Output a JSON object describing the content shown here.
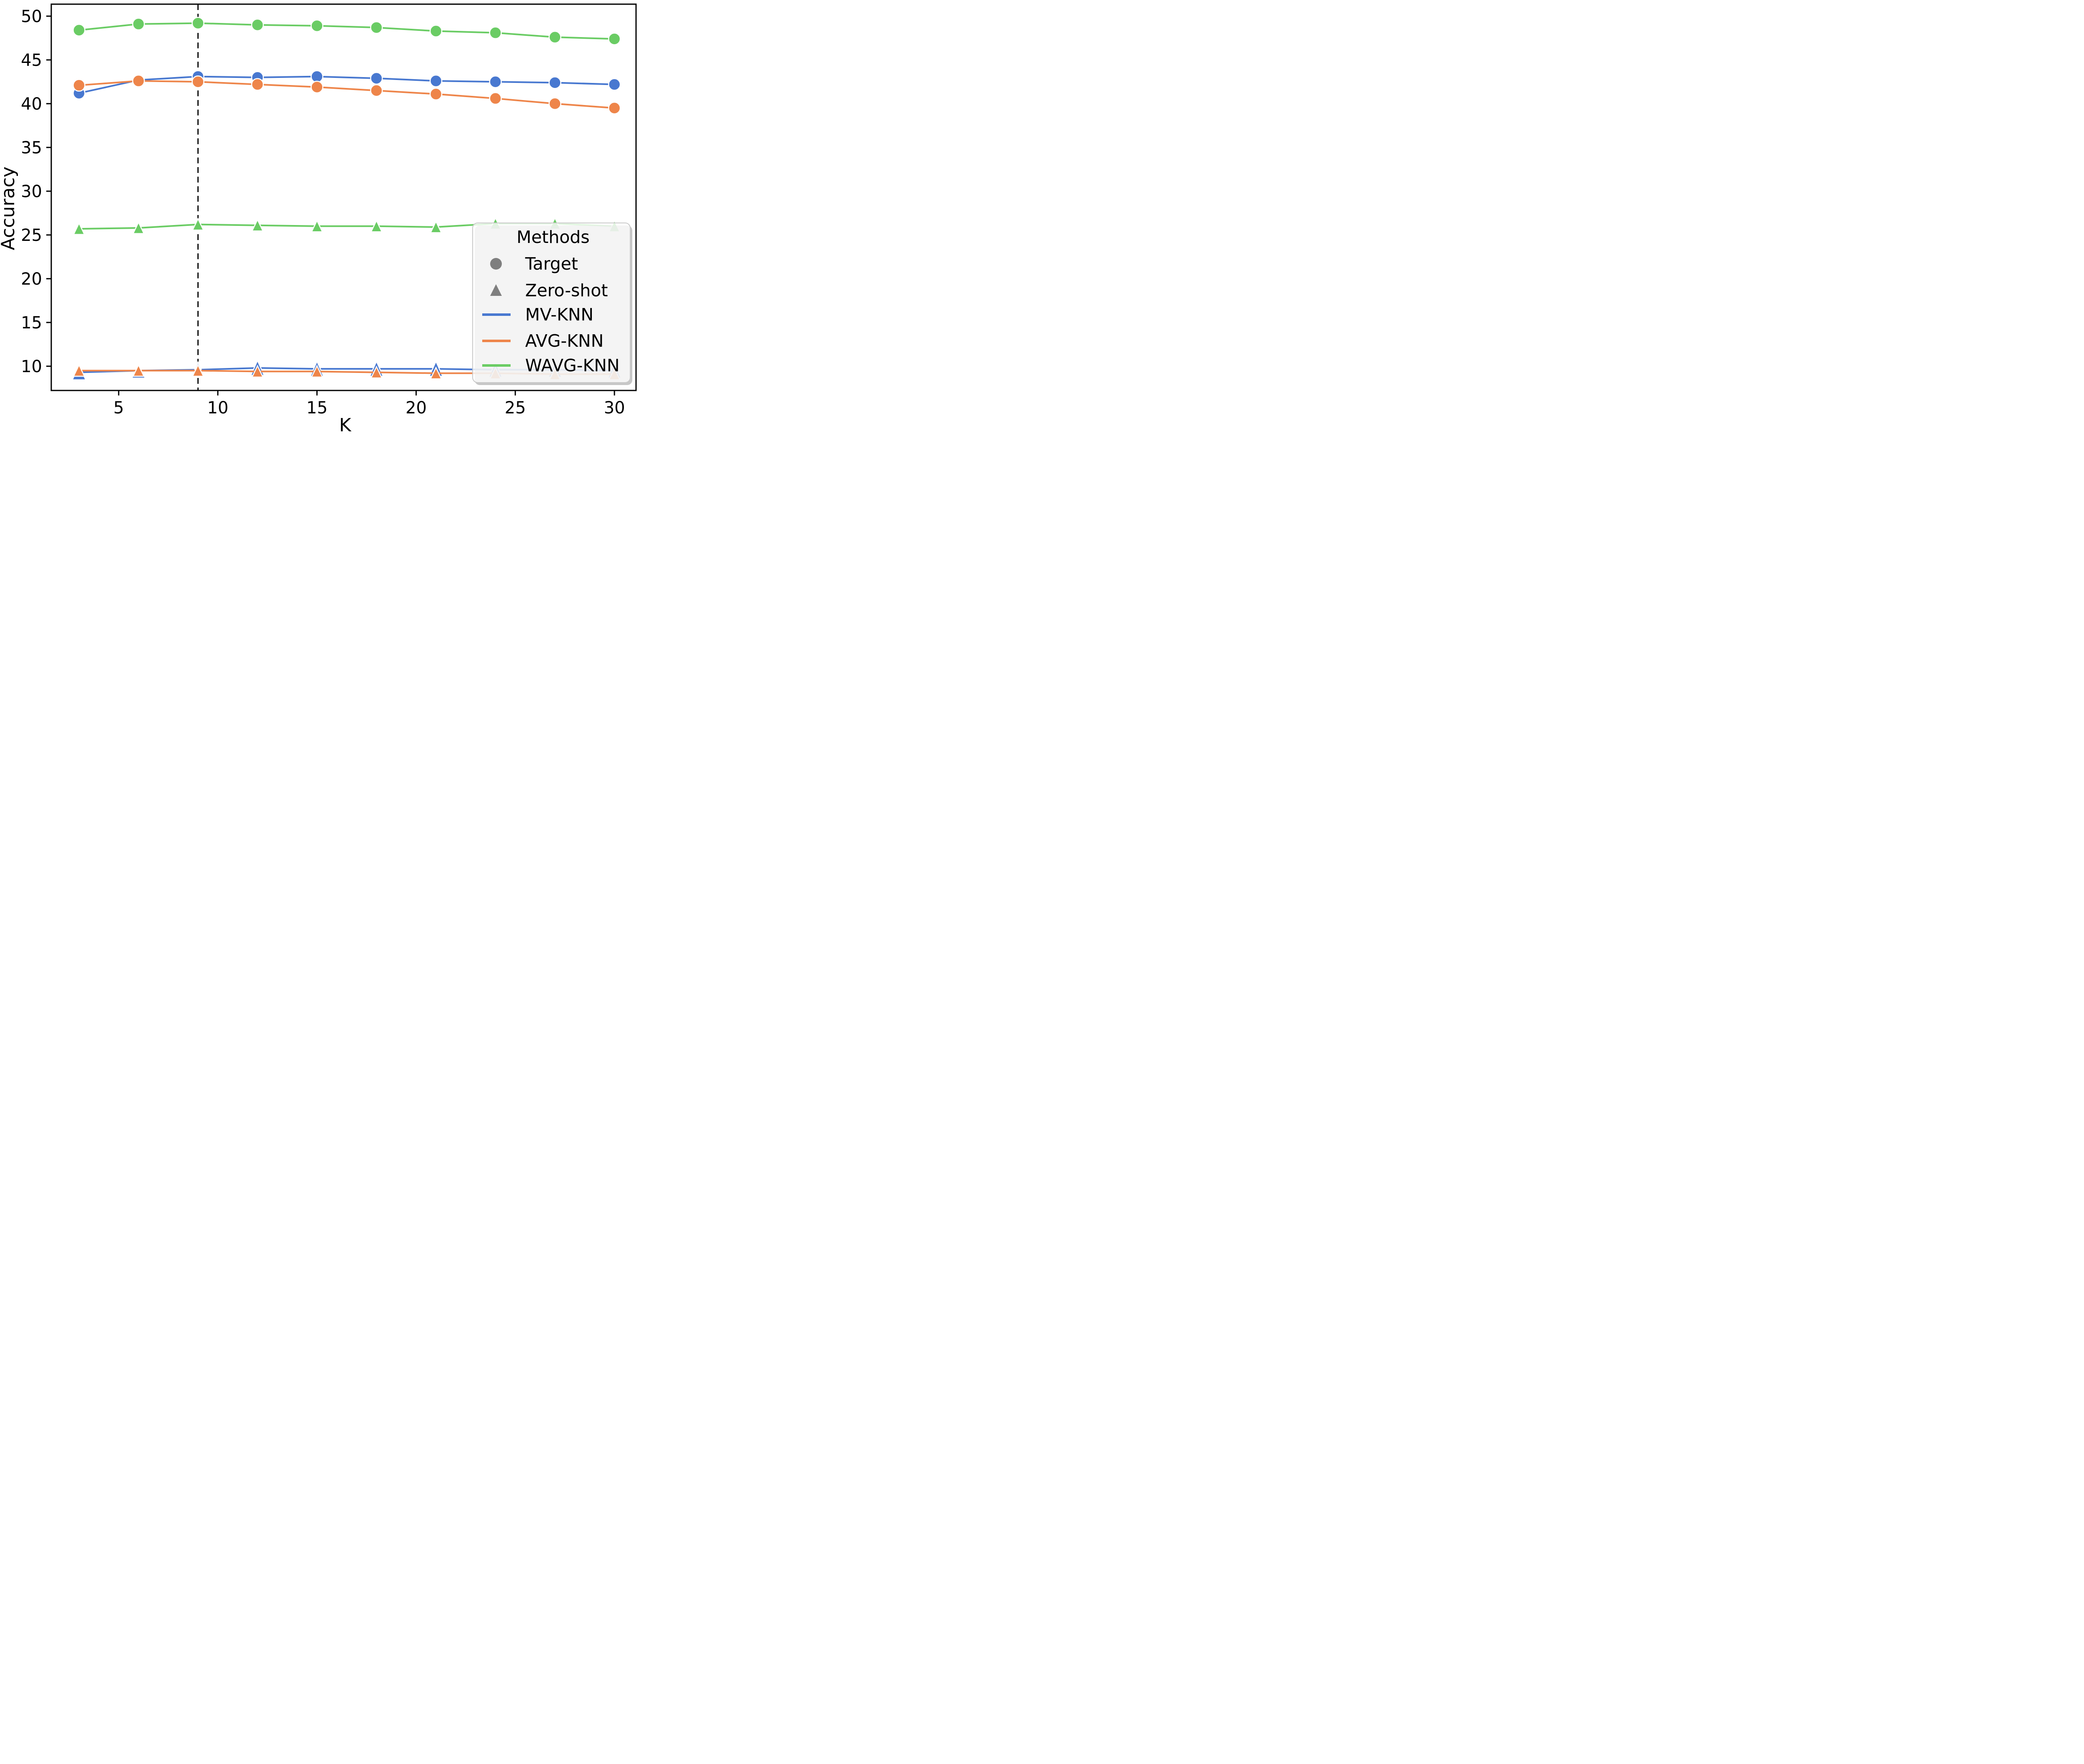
{
  "chart_data": {
    "type": "line",
    "title": "",
    "xlabel": "K",
    "ylabel": "Accuracy",
    "x": [
      3,
      6,
      9,
      12,
      15,
      18,
      21,
      24,
      27,
      30
    ],
    "xticks": [
      5,
      10,
      15,
      20,
      25,
      30
    ],
    "yticks": [
      10,
      15,
      20,
      25,
      30,
      35,
      40,
      45,
      50
    ],
    "xlim": [
      1.6,
      31.09
    ],
    "ylim": [
      7.23,
      51.37
    ],
    "grid": false,
    "vline": {
      "x": 9,
      "style": "dashed",
      "color": "#000000"
    },
    "series": [
      {
        "name": "MV-KNN",
        "group": "Target",
        "marker": "circle",
        "color": "#4878D0",
        "values": [
          41.2,
          42.7,
          43.1,
          43.0,
          43.1,
          42.9,
          42.6,
          42.5,
          42.4,
          42.2
        ]
      },
      {
        "name": "AVG-KNN",
        "group": "Target",
        "marker": "circle",
        "color": "#EE854A",
        "values": [
          42.1,
          42.6,
          42.5,
          42.2,
          41.9,
          41.5,
          41.1,
          40.6,
          40.0,
          39.5
        ]
      },
      {
        "name": "WAVG-KNN",
        "group": "Target",
        "marker": "circle",
        "color": "#6ACC64",
        "values": [
          48.4,
          49.1,
          49.2,
          49.0,
          48.9,
          48.7,
          48.3,
          48.1,
          47.6,
          47.4
        ]
      },
      {
        "name": "MV-KNN",
        "group": "Zero-shot",
        "marker": "triangle",
        "color": "#4878D0",
        "values": [
          9.3,
          9.5,
          9.6,
          9.8,
          9.7,
          9.7,
          9.7,
          9.6,
          9.6,
          9.5
        ]
      },
      {
        "name": "AVG-KNN",
        "group": "Zero-shot",
        "marker": "triangle",
        "color": "#EE854A",
        "values": [
          9.5,
          9.5,
          9.5,
          9.4,
          9.4,
          9.3,
          9.2,
          9.2,
          9.1,
          9.1
        ]
      },
      {
        "name": "WAVG-KNN",
        "group": "Zero-shot",
        "marker": "triangle",
        "color": "#6ACC64",
        "values": [
          25.7,
          25.8,
          26.2,
          26.1,
          26.0,
          26.0,
          25.9,
          26.3,
          26.3,
          26.0
        ]
      }
    ],
    "legend": {
      "title": "Methods",
      "position": "lower right",
      "marker_color": "#7f7f7f",
      "marker_entries": [
        {
          "label": "Target",
          "marker": "circle"
        },
        {
          "label": "Zero-shot",
          "marker": "triangle"
        }
      ],
      "line_entries": [
        {
          "label": "MV-KNN",
          "color": "#4878D0"
        },
        {
          "label": "AVG-KNN",
          "color": "#EE854A"
        },
        {
          "label": "WAVG-KNN",
          "color": "#6ACC64"
        }
      ]
    },
    "colors": {
      "axis": "#000000",
      "legend_border": "#c9c9c9",
      "legend_shadow": "#999999",
      "background": "#ffffff"
    }
  }
}
